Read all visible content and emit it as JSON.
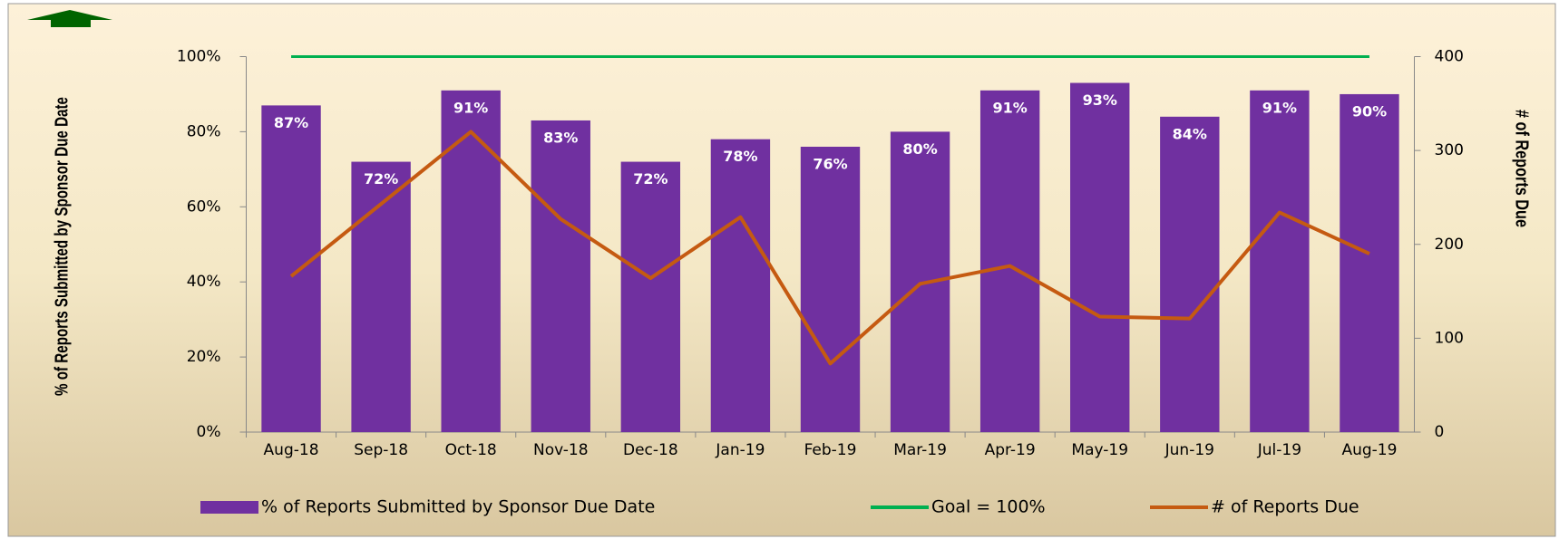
{
  "chart_data": {
    "type": "bar",
    "categories": [
      "Aug-18",
      "Sep-18",
      "Oct-18",
      "Nov-18",
      "Dec-18",
      "Jan-19",
      "Feb-19",
      "Mar-19",
      "Apr-19",
      "May-19",
      "Jun-19",
      "Jul-19",
      "Aug-19"
    ],
    "series": [
      {
        "name": "% of Reports Submitted by Sponsor Due Date",
        "type": "bar",
        "color": "#7030a0",
        "values": [
          87,
          72,
          91,
          83,
          72,
          78,
          76,
          80,
          91,
          93,
          84,
          91,
          90
        ],
        "value_labels": [
          "87%",
          "72%",
          "91%",
          "83%",
          "72%",
          "78%",
          "76%",
          "80%",
          "91%",
          "93%",
          "84%",
          "91%",
          "90%"
        ]
      },
      {
        "name": "Goal = 100%",
        "type": "line",
        "color": "#00b050",
        "values": [
          100,
          100,
          100,
          100,
          100,
          100,
          100,
          100,
          100,
          100,
          100,
          100,
          100
        ]
      },
      {
        "name": "# of Reports Due",
        "type": "line",
        "color": "#c55a11",
        "axis": "y2",
        "values": [
          166,
          243,
          320,
          227,
          164,
          229,
          73,
          158,
          177,
          123,
          121,
          234,
          190
        ]
      }
    ],
    "ylabel": "% of Reports Submitted by Sponsor Due Date",
    "y2label": "# of Reports Due",
    "ylim": [
      0,
      100
    ],
    "yticks": [
      {
        "value": 0,
        "label": "0%"
      },
      {
        "value": 20,
        "label": "20%"
      },
      {
        "value": 40,
        "label": "40%"
      },
      {
        "value": 60,
        "label": "60%"
      },
      {
        "value": 80,
        "label": "80%"
      },
      {
        "value": 100,
        "label": "100%"
      }
    ],
    "y2lim": [
      0,
      400
    ],
    "y2ticks": [
      0,
      100,
      200,
      300,
      400
    ],
    "legend": "bottom"
  }
}
